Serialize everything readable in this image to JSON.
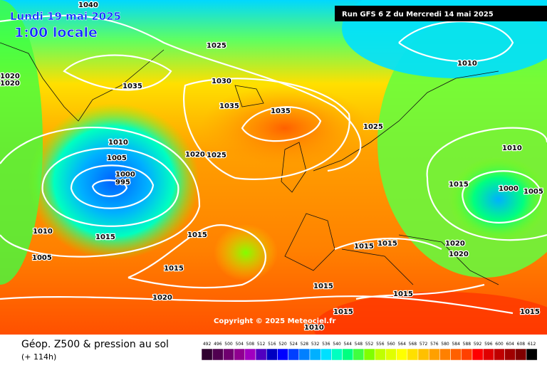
{
  "header": {
    "date": "Lundi 19 mai 2025",
    "time": "1:00 locale",
    "run": "Run GFS 6 Z du Mercredi 14 mai 2025"
  },
  "copyright": "Copyright © 2025 Meteociel.fr",
  "footer": {
    "title": "Géop. Z500 & pression au sol",
    "lead": "(+ 114h)"
  },
  "isobar_labels": [
    "1040",
    "1025",
    "1035",
    "1030",
    "1035",
    "1035",
    "1025",
    "1010",
    "1005",
    "1000",
    "995",
    "1020",
    "1025",
    "1015",
    "1010",
    "1005",
    "1015",
    "1015",
    "1020",
    "1015",
    "1015",
    "1015",
    "1010",
    "1015",
    "1015",
    "1015",
    "1020",
    "1020",
    "1010",
    "1000",
    "1005",
    "1015",
    "1010",
    "1020",
    "1020"
  ],
  "colorbar": {
    "labels": [
      492,
      496,
      500,
      504,
      508,
      512,
      516,
      520,
      524,
      528,
      532,
      536,
      540,
      544,
      548,
      552,
      556,
      560,
      564,
      568,
      572,
      576,
      580,
      584,
      588,
      592,
      596,
      600,
      604,
      608,
      612
    ],
    "colors": [
      "#300030",
      "#500050",
      "#700070",
      "#900090",
      "#a000c0",
      "#5000c0",
      "#0000c0",
      "#0000ff",
      "#0040ff",
      "#0080ff",
      "#00b0ff",
      "#00e0ff",
      "#00ffc0",
      "#00ff80",
      "#40ff40",
      "#80ff00",
      "#c0ff00",
      "#e0ff00",
      "#ffff00",
      "#ffe000",
      "#ffc000",
      "#ffa000",
      "#ff8000",
      "#ff6000",
      "#ff4000",
      "#ff0000",
      "#e00000",
      "#c00000",
      "#a00000",
      "#800000",
      "#000000"
    ]
  }
}
